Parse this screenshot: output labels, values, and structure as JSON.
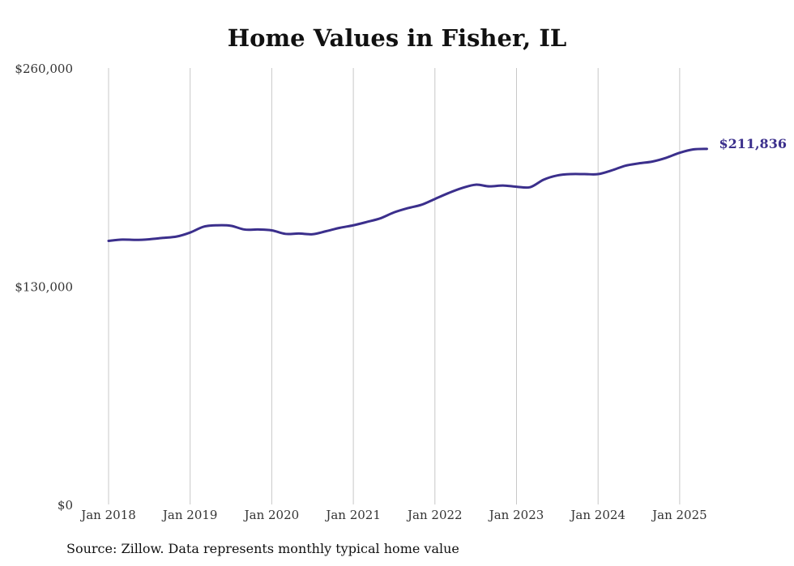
{
  "chart_data": {
    "type": "line",
    "title": "Home Values in Fisher, IL",
    "xlabel": "",
    "ylabel": "",
    "ylim": [
      0,
      260000
    ],
    "ytick_labels": [
      {
        "value": 0,
        "label": "$0"
      },
      {
        "value": 130000,
        "label": "$130,000"
      },
      {
        "value": 260000,
        "label": "$260,000"
      }
    ],
    "xtick_labels": [
      {
        "year": 2018,
        "label": "Jan 2018"
      },
      {
        "year": 2019,
        "label": "Jan 2019"
      },
      {
        "year": 2020,
        "label": "Jan 2020"
      },
      {
        "year": 2021,
        "label": "Jan 2021"
      },
      {
        "year": 2022,
        "label": "Jan 2022"
      },
      {
        "year": 2023,
        "label": "Jan 2023"
      },
      {
        "year": 2024,
        "label": "Jan 2024"
      },
      {
        "year": 2025,
        "label": "Jan 2025"
      }
    ],
    "grid": "vertical",
    "line_color": "#3b2f8c",
    "series": [
      {
        "points": [
          [
            "2018-01",
            157000
          ],
          [
            "2018-03",
            157800
          ],
          [
            "2018-05",
            157600
          ],
          [
            "2018-07",
            158000
          ],
          [
            "2018-09",
            158800
          ],
          [
            "2018-11",
            159600
          ],
          [
            "2019-01",
            162000
          ],
          [
            "2019-03",
            165500
          ],
          [
            "2019-05",
            166300
          ],
          [
            "2019-07",
            166000
          ],
          [
            "2019-09",
            163800
          ],
          [
            "2019-11",
            163800
          ],
          [
            "2020-01",
            163300
          ],
          [
            "2020-03",
            161200
          ],
          [
            "2020-05",
            161400
          ],
          [
            "2020-07",
            161000
          ],
          [
            "2020-09",
            162800
          ],
          [
            "2020-11",
            164800
          ],
          [
            "2021-01",
            166300
          ],
          [
            "2021-03",
            168300
          ],
          [
            "2021-05",
            170500
          ],
          [
            "2021-07",
            174000
          ],
          [
            "2021-09",
            176500
          ],
          [
            "2021-11",
            178500
          ],
          [
            "2022-01",
            182000
          ],
          [
            "2022-03",
            185500
          ],
          [
            "2022-05",
            188500
          ],
          [
            "2022-07",
            190500
          ],
          [
            "2022-09",
            189500
          ],
          [
            "2022-11",
            190000
          ],
          [
            "2023-01",
            189300
          ],
          [
            "2023-03",
            189000
          ],
          [
            "2023-05",
            193500
          ],
          [
            "2023-07",
            196000
          ],
          [
            "2023-09",
            196800
          ],
          [
            "2023-11",
            196800
          ],
          [
            "2024-01",
            196800
          ],
          [
            "2024-03",
            199000
          ],
          [
            "2024-05",
            201800
          ],
          [
            "2024-07",
            203200
          ],
          [
            "2024-09",
            204300
          ],
          [
            "2024-11",
            206500
          ],
          [
            "2025-01",
            209500
          ],
          [
            "2025-03",
            211500
          ],
          [
            "2025-05",
            211836
          ]
        ]
      }
    ],
    "end_label": "$211,836"
  },
  "footer": {
    "source": "Source: Zillow. Data represents monthly typical home value"
  }
}
